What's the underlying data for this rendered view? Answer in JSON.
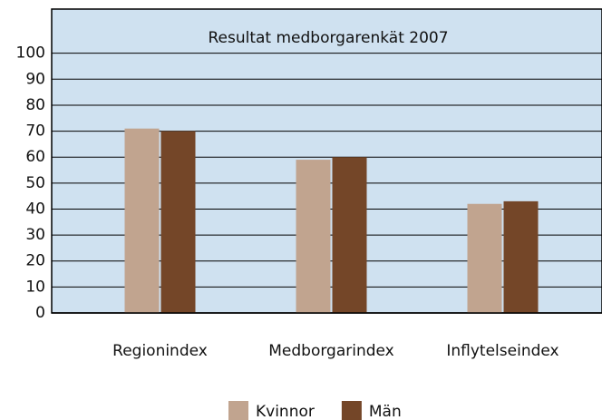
{
  "chart_data": {
    "type": "bar",
    "title": "Resultat medborgarenkät 2007",
    "categories": [
      "Regionindex",
      "Medborgarindex",
      "Inflytelseindex"
    ],
    "series": [
      {
        "name": "Kvinnor",
        "color": "#c1a48f",
        "values": [
          71,
          59,
          42
        ]
      },
      {
        "name": "Män",
        "color": "#744628",
        "values": [
          70,
          60,
          43
        ]
      }
    ],
    "ylim": [
      0,
      117
    ],
    "yticks": [
      0,
      10,
      20,
      30,
      40,
      50,
      60,
      70,
      80,
      90,
      100
    ],
    "grid": true
  }
}
